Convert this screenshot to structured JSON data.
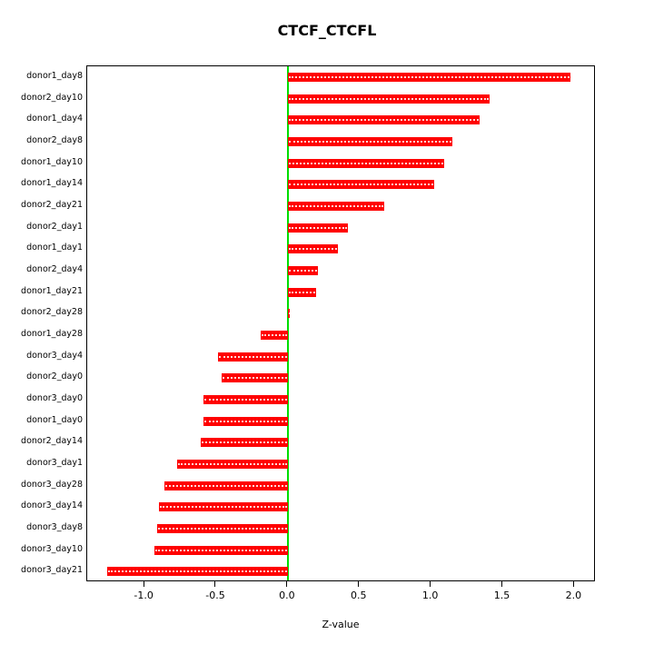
{
  "chart_data": {
    "type": "bar",
    "orientation": "horizontal",
    "title": "CTCF_CTCFL",
    "xlabel": "Z-value",
    "categories": [
      "donor1_day8",
      "donor2_day10",
      "donor1_day4",
      "donor2_day8",
      "donor1_day10",
      "donor1_day14",
      "donor2_day21",
      "donor2_day1",
      "donor1_day1",
      "donor2_day4",
      "donor1_day21",
      "donor2_day28",
      "donor1_day28",
      "donor3_day4",
      "donor2_day0",
      "donor3_day0",
      "donor1_day0",
      "donor2_day14",
      "donor3_day1",
      "donor3_day28",
      "donor3_day14",
      "donor3_day8",
      "donor3_day10",
      "donor3_day21"
    ],
    "values": [
      1.97,
      1.41,
      1.34,
      1.15,
      1.09,
      1.02,
      0.67,
      0.42,
      0.35,
      0.21,
      0.2,
      0.015,
      -0.19,
      -0.49,
      -0.46,
      -0.59,
      -0.59,
      -0.61,
      -0.77,
      -0.86,
      -0.9,
      -0.91,
      -0.93,
      -1.26
    ],
    "xlim": [
      -1.4,
      2.15
    ],
    "xticks": [
      -1.0,
      -0.5,
      0.0,
      0.5,
      1.0,
      1.5,
      2.0
    ],
    "xtick_labels": [
      "-1.0",
      "-0.5",
      "0.0",
      "0.5",
      "1.0",
      "1.5",
      "2.0"
    ],
    "bar_color": "#FF0000",
    "zero_line_color": "#00DD00",
    "grid": false,
    "legend": null
  }
}
